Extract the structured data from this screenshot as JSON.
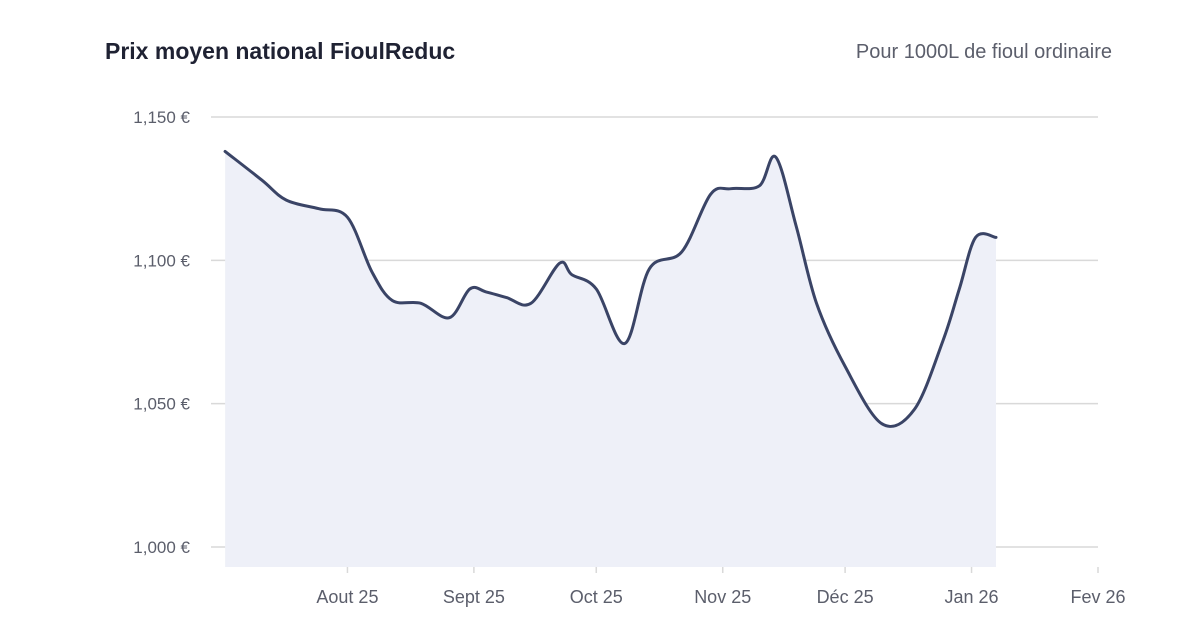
{
  "header": {
    "title": "Prix moyen national FioulReduc",
    "subtitle": "Pour 1000L de fioul ordinaire"
  },
  "colors": {
    "line": "#3a4466",
    "fill": "#eef0f8",
    "grid": "#d9d9d9",
    "text": "#5b5e6b"
  },
  "chart_data": {
    "type": "area",
    "title": "Prix moyen national FioulReduc",
    "subtitle": "Pour 1000L de fioul ordinaire",
    "xlabel": "",
    "ylabel": "",
    "ylim": [
      1000,
      1150
    ],
    "yticks": [
      1000,
      1050,
      1100,
      1150
    ],
    "ytick_labels": [
      "1,000 €",
      "1,050 €",
      "1,100 €",
      "1,150 €"
    ],
    "xlim": [
      "2025-07-01",
      "2026-02-01"
    ],
    "x_ticks": [
      "2025-08-01",
      "2025-09-01",
      "2025-10-01",
      "2025-11-01",
      "2025-12-01",
      "2026-01-01",
      "2026-02-01"
    ],
    "x_tick_labels": [
      "Aout 25",
      "Sept 25",
      "Oct 25",
      "Nov 25",
      "Déc 25",
      "Jan 26",
      "Fev 26"
    ],
    "grid": true,
    "series": [
      {
        "x": [
          "2025-07-02",
          "2025-07-11",
          "2025-07-17",
          "2025-07-25",
          "2025-08-01",
          "2025-08-07",
          "2025-08-12",
          "2025-08-19",
          "2025-08-26",
          "2025-08-31",
          "2025-09-04",
          "2025-09-09",
          "2025-09-15",
          "2025-09-22",
          "2025-09-25",
          "2025-10-01",
          "2025-10-08",
          "2025-10-14",
          "2025-10-22",
          "2025-10-29",
          "2025-11-03",
          "2025-11-10",
          "2025-11-14",
          "2025-11-19",
          "2025-11-24",
          "2025-12-01",
          "2025-12-10",
          "2025-12-18",
          "2025-12-25",
          "2025-12-29",
          "2026-01-02",
          "2026-01-07"
        ],
        "y": [
          1138,
          1128,
          1121,
          1118,
          1115,
          1096,
          1086,
          1085,
          1080,
          1090,
          1089,
          1087,
          1085,
          1099,
          1095,
          1090,
          1071,
          1097,
          1103,
          1123,
          1125,
          1126,
          1136,
          1112,
          1085,
          1063,
          1043,
          1048,
          1072,
          1090,
          1108,
          1108
        ]
      }
    ]
  }
}
